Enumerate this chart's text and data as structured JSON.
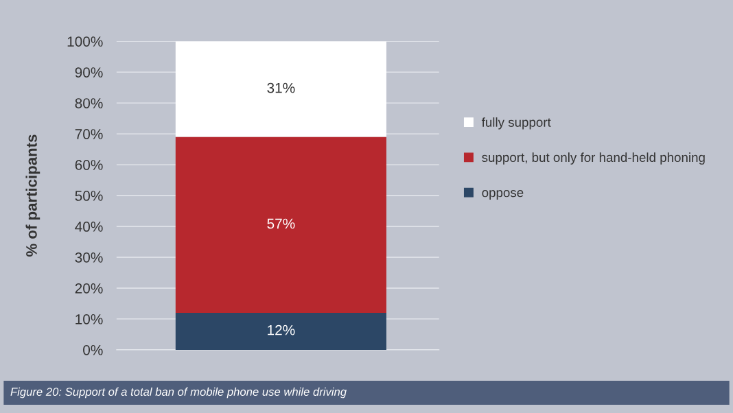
{
  "chart_data": {
    "type": "bar",
    "stacked": true,
    "categories": [
      null
    ],
    "ylabel": "% of participants",
    "series": [
      {
        "name": "oppose",
        "color": "#2c4766",
        "values": [
          12
        ],
        "value_labels": [
          "12%"
        ]
      },
      {
        "name": "support, but only for hand-held phoning",
        "color": "#b7282e",
        "values": [
          57
        ],
        "value_labels": [
          "57%"
        ]
      },
      {
        "name": "fully support",
        "color": "#ffffff",
        "values": [
          31
        ],
        "value_labels": [
          "31%"
        ]
      }
    ],
    "ylim": [
      0,
      100
    ],
    "yticks": [
      {
        "value": 0,
        "label": "0%"
      },
      {
        "value": 10,
        "label": "10%"
      },
      {
        "value": 20,
        "label": "20%"
      },
      {
        "value": 30,
        "label": "30%"
      },
      {
        "value": 40,
        "label": "40%"
      },
      {
        "value": 50,
        "label": "50%"
      },
      {
        "value": 60,
        "label": "60%"
      },
      {
        "value": 70,
        "label": "70%"
      },
      {
        "value": 80,
        "label": "80%"
      },
      {
        "value": 90,
        "label": "90%"
      },
      {
        "value": 100,
        "label": "100%"
      }
    ],
    "grid": "y",
    "legend": "right",
    "annotations": [
      "Figure 20: Support of a total ban of mobile phone use while driving"
    ]
  }
}
